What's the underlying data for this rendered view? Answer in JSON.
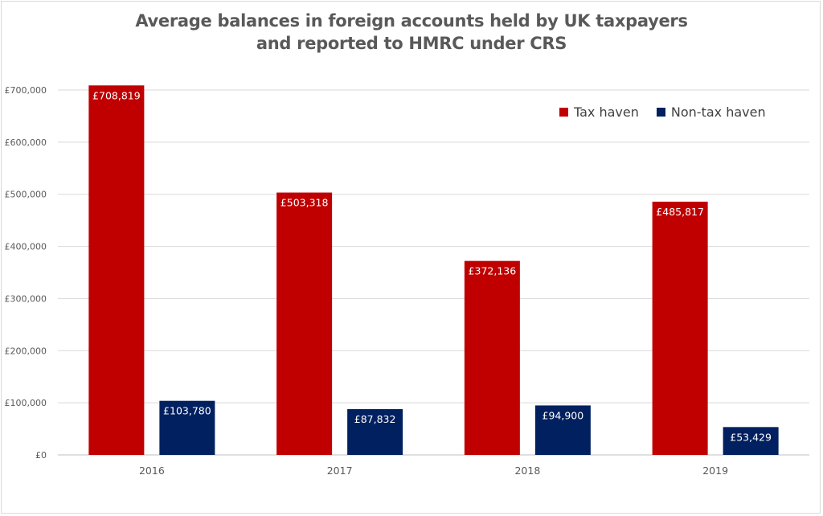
{
  "chart_data": {
    "type": "bar",
    "title": "Average balances in foreign accounts held by UK taxpayers",
    "subtitle": "and reported to HMRC under CRS",
    "categories": [
      "2016",
      "2017",
      "2018",
      "2019"
    ],
    "series": [
      {
        "name": "Tax haven",
        "color": "#c00000",
        "values": [
          708819,
          503318,
          372136,
          485817
        ],
        "labels": [
          "£708,819",
          "£503,318",
          "£372,136",
          "£485,817"
        ]
      },
      {
        "name": "Non-tax haven",
        "color": "#002060",
        "values": [
          103780,
          87832,
          94900,
          53429
        ],
        "labels": [
          "£103,780",
          "£87,832",
          "£94,900",
          "£53,429"
        ]
      }
    ],
    "ylim": [
      0,
      700000
    ],
    "yticks": [
      0,
      100000,
      200000,
      300000,
      400000,
      500000,
      600000,
      700000
    ],
    "ytick_labels": [
      "£0",
      "£100,000",
      "£200,000",
      "£300,000",
      "£400,000",
      "£500,000",
      "£600,000",
      "£700,000"
    ],
    "grid": true,
    "legend_position": "top-right"
  }
}
